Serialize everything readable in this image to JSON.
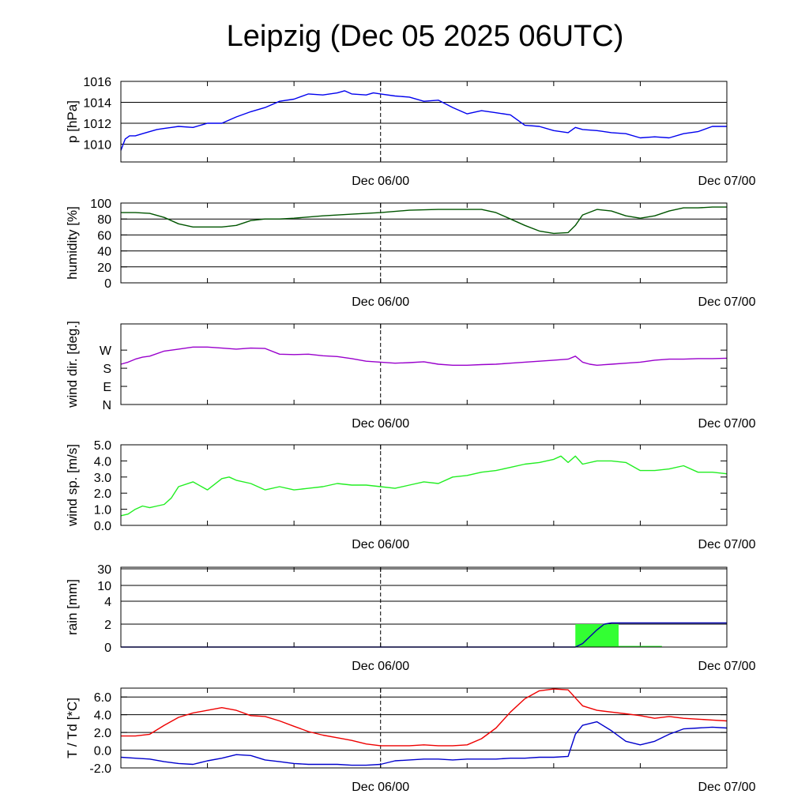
{
  "title": "Leipzig (Dec 05 2025 06UTC)",
  "chart_data": [
    {
      "type": "line",
      "ylabel": "p [hPa]",
      "ylim": [
        1008.3,
        1016.0
      ],
      "yticks": [
        1010,
        1012,
        1014,
        1016
      ],
      "ytick_labels": [
        "1010",
        "1012",
        "1014",
        "1016"
      ],
      "xlim": [
        0,
        42
      ],
      "x_tick_labels": [
        {
          "x": 18,
          "label": "Dec 06/00"
        },
        {
          "x": 42,
          "label": "Dec 07/00"
        }
      ],
      "vline_x": 18,
      "grid": true,
      "series": [
        {
          "color": "#0000ee",
          "x": [
            0,
            0.3,
            0.6,
            1,
            1.5,
            2,
            2.5,
            3,
            3.5,
            4,
            5,
            6,
            7,
            8,
            9,
            10,
            11,
            12,
            13,
            14,
            15,
            15.5,
            16,
            17,
            17.5,
            18,
            19,
            20,
            21,
            22,
            23,
            24,
            25,
            26,
            27,
            28,
            29,
            30,
            31,
            31.5,
            32,
            33,
            34,
            35,
            36,
            37,
            38,
            39,
            40,
            41,
            42
          ],
          "y": [
            1009.4,
            1010.5,
            1010.8,
            1010.8,
            1011.0,
            1011.2,
            1011.4,
            1011.5,
            1011.6,
            1011.7,
            1011.6,
            1012.0,
            1012.0,
            1012.6,
            1013.1,
            1013.5,
            1014.1,
            1014.3,
            1014.8,
            1014.7,
            1014.9,
            1015.1,
            1014.8,
            1014.7,
            1014.9,
            1014.8,
            1014.6,
            1014.5,
            1014.1,
            1014.2,
            1013.5,
            1012.9,
            1013.2,
            1013.0,
            1012.8,
            1011.8,
            1011.7,
            1011.3,
            1011.1,
            1011.6,
            1011.4,
            1011.3,
            1011.1,
            1011.0,
            1010.6,
            1010.7,
            1010.6,
            1011.0,
            1011.2,
            1011.7,
            1011.7
          ]
        }
      ]
    },
    {
      "type": "line",
      "ylabel": "humidity [%]",
      "ylim": [
        0,
        100
      ],
      "yticks": [
        0,
        20,
        40,
        60,
        80,
        100
      ],
      "ytick_labels": [
        "0",
        "20",
        "40",
        "60",
        "80",
        "100"
      ],
      "xlim": [
        0,
        42
      ],
      "x_tick_labels": [
        {
          "x": 18,
          "label": "Dec 06/00"
        },
        {
          "x": 42,
          "label": "Dec 07/00"
        }
      ],
      "vline_x": 18,
      "grid": true,
      "series": [
        {
          "color": "#005500",
          "x": [
            0,
            1,
            2,
            3,
            4,
            5,
            6,
            7,
            8,
            9,
            10,
            11,
            12,
            14,
            16,
            18,
            20,
            22,
            24,
            25,
            26,
            27,
            28,
            29,
            30,
            31,
            31.5,
            32,
            33,
            34,
            35,
            36,
            37,
            38,
            39,
            40,
            41,
            42
          ],
          "y": [
            88,
            88,
            87,
            82,
            74,
            70,
            70,
            70,
            72,
            78,
            80,
            80,
            81,
            84,
            86,
            88,
            91,
            92,
            92,
            92,
            88,
            80,
            72,
            65,
            62,
            63,
            72,
            85,
            92,
            90,
            84,
            81,
            84,
            90,
            94,
            94,
            95,
            95
          ]
        }
      ]
    },
    {
      "type": "line",
      "ylabel": "wind dir. [deg.]",
      "ylim": [
        0,
        400
      ],
      "yticks": [
        0,
        90,
        180,
        270
      ],
      "ytick_labels": [
        "N",
        "E",
        "S",
        "W"
      ],
      "xlim": [
        0,
        42
      ],
      "x_tick_labels": [
        {
          "x": 18,
          "label": "Dec 06/00"
        },
        {
          "x": 42,
          "label": "Dec 07/00"
        }
      ],
      "vline_x": 18,
      "grid": false,
      "series": [
        {
          "color": "#9900cc",
          "x": [
            0,
            0.5,
            1,
            1.5,
            2,
            3,
            4,
            5,
            6,
            7,
            8,
            9,
            10,
            11,
            12,
            13,
            14,
            15,
            16,
            17,
            18,
            19,
            20,
            21,
            22,
            23,
            24,
            25,
            26,
            27,
            28,
            29,
            30,
            31,
            31.5,
            32,
            32.5,
            33,
            34,
            35,
            36,
            37,
            38,
            39,
            40,
            41,
            42
          ],
          "y": [
            200,
            210,
            225,
            235,
            240,
            265,
            275,
            285,
            285,
            280,
            275,
            280,
            278,
            250,
            248,
            250,
            242,
            238,
            228,
            215,
            210,
            205,
            208,
            212,
            200,
            195,
            195,
            198,
            200,
            205,
            210,
            215,
            220,
            225,
            240,
            210,
            200,
            195,
            200,
            205,
            210,
            220,
            225,
            225,
            228,
            228,
            230
          ]
        }
      ]
    },
    {
      "type": "line",
      "ylabel": "wind sp. [m/s]",
      "ylim": [
        0,
        5.0
      ],
      "yticks": [
        0,
        1,
        2,
        3,
        4,
        5
      ],
      "ytick_labels": [
        "0.0",
        "1.0",
        "2.0",
        "3.0",
        "4.0",
        "5.0"
      ],
      "xlim": [
        0,
        42
      ],
      "x_tick_labels": [
        {
          "x": 18,
          "label": "Dec 06/00"
        },
        {
          "x": 42,
          "label": "Dec 07/00"
        }
      ],
      "vline_x": 18,
      "grid": false,
      "series": [
        {
          "color": "#22ee22",
          "x": [
            0,
            0.5,
            1,
            1.5,
            2,
            2.5,
            3,
            3.5,
            4,
            5,
            6,
            7,
            7.5,
            8,
            9,
            10,
            11,
            12,
            13,
            14,
            15,
            16,
            17,
            18,
            19,
            20,
            21,
            22,
            23,
            24,
            25,
            26,
            27,
            28,
            29,
            30,
            30.5,
            31,
            31.5,
            32,
            33,
            34,
            35,
            36,
            37,
            38,
            39,
            40,
            41,
            42
          ],
          "y": [
            0.6,
            0.7,
            1.0,
            1.2,
            1.1,
            1.2,
            1.3,
            1.7,
            2.4,
            2.7,
            2.2,
            2.9,
            3.0,
            2.8,
            2.6,
            2.2,
            2.4,
            2.2,
            2.3,
            2.4,
            2.6,
            2.5,
            2.5,
            2.4,
            2.3,
            2.5,
            2.7,
            2.6,
            3.0,
            3.1,
            3.3,
            3.4,
            3.6,
            3.8,
            3.9,
            4.1,
            4.3,
            3.9,
            4.3,
            3.8,
            4.0,
            4.0,
            3.9,
            3.4,
            3.4,
            3.5,
            3.7,
            3.3,
            3.3,
            3.2
          ]
        }
      ]
    },
    {
      "type": "area",
      "ylabel": "rain [mm]",
      "ylim": [
        0,
        30
      ],
      "yticks": [
        0,
        2,
        4,
        10,
        30
      ],
      "ytick_labels": [
        "0",
        "2",
        "4",
        "10",
        "30"
      ],
      "y_scale": "nonlinear",
      "xlim": [
        0,
        42
      ],
      "x_tick_labels": [
        {
          "x": 18,
          "label": "Dec 06/00"
        },
        {
          "x": 42,
          "label": "Dec 07/00"
        }
      ],
      "vline_x": 18,
      "grid": true,
      "bars": [
        {
          "color": "#33ff33",
          "x0": 31.5,
          "x1": 34.5,
          "value": 2.0
        },
        {
          "color": "#33ff33",
          "x0": 34.5,
          "x1": 37.5,
          "value": 0.1
        }
      ],
      "series": [
        {
          "color": "#0000aa",
          "x": [
            0,
            31.5,
            32,
            33,
            33.5,
            34,
            35,
            42
          ],
          "y": [
            0,
            0,
            0.3,
            1.5,
            2.0,
            2.1,
            2.1,
            2.1
          ]
        }
      ]
    },
    {
      "type": "line",
      "ylabel": "T / Td [*C]",
      "ylim": [
        -2.0,
        7.0
      ],
      "yticks": [
        -2,
        0,
        2,
        4,
        6
      ],
      "ytick_labels": [
        "-2.0",
        "0.0",
        "2.0",
        "4.0",
        "6.0"
      ],
      "xlim": [
        0,
        42
      ],
      "x_tick_labels": [
        {
          "x": 18,
          "label": "Dec 06/00"
        },
        {
          "x": 42,
          "label": "Dec 07/00"
        }
      ],
      "vline_x": 18,
      "grid": true,
      "series": [
        {
          "color": "#ee0000",
          "x": [
            0,
            1,
            2,
            3,
            4,
            5,
            6,
            7,
            8,
            9,
            10,
            11,
            12,
            13,
            14,
            15,
            16,
            17,
            18,
            19,
            20,
            21,
            22,
            23,
            24,
            25,
            26,
            27,
            28,
            29,
            30,
            31,
            32,
            33,
            34,
            35,
            36,
            37,
            38,
            39,
            40,
            41,
            42
          ],
          "y": [
            1.6,
            1.6,
            1.8,
            2.8,
            3.7,
            4.2,
            4.5,
            4.8,
            4.5,
            3.9,
            3.8,
            3.3,
            2.7,
            2.1,
            1.7,
            1.4,
            1.1,
            0.7,
            0.5,
            0.5,
            0.5,
            0.6,
            0.5,
            0.5,
            0.6,
            1.3,
            2.5,
            4.3,
            5.8,
            6.7,
            6.9,
            6.8,
            5.0,
            4.5,
            4.3,
            4.1,
            3.9,
            3.6,
            3.8,
            3.6,
            3.5,
            3.4,
            3.3
          ]
        },
        {
          "color": "#0000cc",
          "x": [
            0,
            1,
            2,
            3,
            4,
            5,
            6,
            7,
            8,
            9,
            10,
            11,
            12,
            13,
            14,
            15,
            16,
            17,
            18,
            19,
            20,
            21,
            22,
            23,
            24,
            25,
            26,
            27,
            28,
            29,
            30,
            31,
            31.5,
            32,
            33,
            34,
            35,
            36,
            37,
            38,
            39,
            40,
            41,
            42
          ],
          "y": [
            -0.8,
            -0.9,
            -1.0,
            -1.3,
            -1.5,
            -1.6,
            -1.2,
            -0.9,
            -0.5,
            -0.6,
            -1.1,
            -1.3,
            -1.5,
            -1.6,
            -1.6,
            -1.6,
            -1.7,
            -1.7,
            -1.6,
            -1.2,
            -1.1,
            -1.0,
            -1.0,
            -1.1,
            -1.0,
            -1.0,
            -1.0,
            -0.9,
            -0.9,
            -0.8,
            -0.8,
            -0.7,
            1.8,
            2.8,
            3.2,
            2.2,
            1.0,
            0.6,
            1.0,
            1.8,
            2.4,
            2.5,
            2.6,
            2.5
          ]
        }
      ]
    }
  ]
}
